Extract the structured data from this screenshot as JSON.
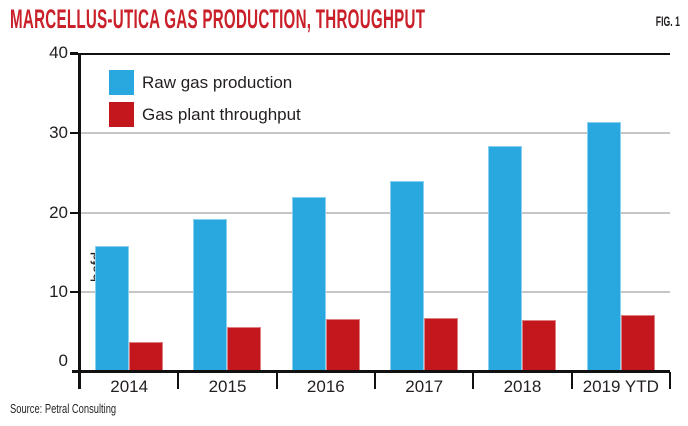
{
  "chart_data": {
    "type": "bar",
    "title": "MARCELLUS-UTICA GAS PRODUCTION, THROUGHPUT",
    "fig_label": "FIG. 1",
    "ylabel": "bcfd",
    "ylim": [
      0,
      40
    ],
    "yticks": [
      0,
      10,
      20,
      30,
      40
    ],
    "grid": "horizontal gray lines at 10, 20, 30; black rule at 40; black baseline at 0",
    "legend_position": "top-left inside plot",
    "categories": [
      "2014",
      "2015",
      "2016",
      "2017",
      "2018",
      "2019 YTD"
    ],
    "series": [
      {
        "name": "Raw gas production",
        "color": "#29a8e0",
        "values": [
          15.8,
          19.2,
          22.0,
          24.0,
          28.4,
          31.3
        ]
      },
      {
        "name": "Gas plant throughput",
        "color": "#c4161d",
        "values": [
          3.8,
          5.7,
          6.7,
          6.8,
          6.5,
          7.1
        ]
      }
    ],
    "source": "Source: Petral Consulting",
    "colors": {
      "title_red": "#c9202a",
      "raw_gas_blue": "#29a8e0",
      "throughput_red": "#c4161d",
      "axis_black": "#111111",
      "gridline_gray": "#c6c6c6"
    }
  }
}
